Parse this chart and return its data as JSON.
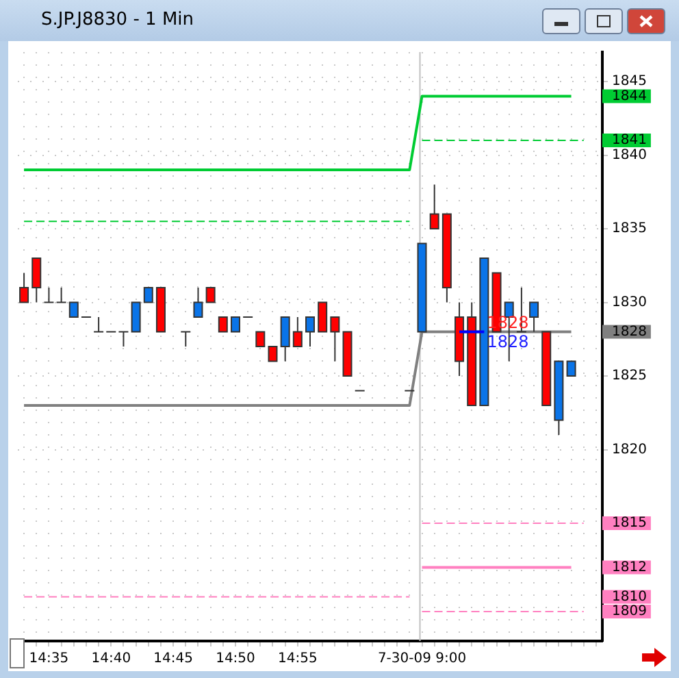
{
  "chart_data": {
    "type": "candlestick",
    "title": "S.JP.J8830 - 1 Min",
    "categories": [
      null,
      null,
      "14:35",
      null,
      null,
      null,
      null,
      "14:40",
      null,
      null,
      null,
      null,
      "14:45",
      null,
      null,
      null,
      null,
      "14:50",
      null,
      null,
      null,
      null,
      "14:55",
      null,
      null,
      null,
      null,
      null,
      null,
      null,
      null,
      null,
      "7-30-09 9:00",
      null,
      null,
      null,
      null,
      null,
      null,
      null,
      null,
      null,
      null,
      null,
      null,
      null,
      null
    ],
    "ohlc": [
      [
        1831,
        1832,
        1830,
        1830
      ],
      [
        1833,
        1833,
        1830,
        1831
      ],
      [
        1830,
        1831,
        1830,
        1830
      ],
      [
        1830,
        1831,
        1830,
        1830
      ],
      [
        1829,
        1830,
        1829,
        1830
      ],
      [
        1829,
        1829,
        1829,
        1829
      ],
      [
        1828,
        1829,
        1828,
        1828
      ],
      [
        1828,
        1828,
        1828,
        1828
      ],
      [
        1828,
        1828,
        1827,
        1828
      ],
      [
        1828,
        1830,
        1828,
        1830
      ],
      [
        1830,
        1831,
        1830,
        1831
      ],
      [
        1831,
        1831,
        1828,
        1828
      ],
      null,
      [
        1828,
        1828,
        1827,
        1828
      ],
      [
        1829,
        1831,
        1829,
        1830
      ],
      [
        1831,
        1831,
        1830,
        1830
      ],
      [
        1829,
        1829,
        1828,
        1828
      ],
      [
        1828,
        1829,
        1828,
        1829
      ],
      [
        1829,
        1829,
        1829,
        1829
      ],
      [
        1828,
        1828,
        1827,
        1827
      ],
      [
        1827,
        1827,
        1826,
        1826
      ],
      [
        1827,
        1829,
        1826,
        1829
      ],
      [
        1828,
        1829,
        1827,
        1827
      ],
      [
        1828,
        1829,
        1827,
        1829
      ],
      [
        1830,
        1830,
        1828,
        1828
      ],
      [
        1829,
        1829,
        1826,
        1828
      ],
      [
        1828,
        1828,
        1825,
        1825
      ],
      [
        1824,
        1824,
        1824,
        1824
      ],
      null,
      null,
      null,
      [
        1824,
        1824,
        1824,
        1824
      ],
      [
        1828,
        1834,
        1828,
        1834
      ],
      [
        1836,
        1838,
        1835,
        1835
      ],
      [
        1836,
        1836,
        1830,
        1831
      ],
      [
        1829,
        1830,
        1825,
        1826
      ],
      [
        1829,
        1830,
        1823,
        1823
      ],
      [
        1823,
        1833,
        1823,
        1833
      ],
      [
        1832,
        1832,
        1828,
        1828
      ],
      [
        1829,
        1830,
        1826,
        1830
      ],
      [
        1828,
        1831,
        1828,
        1828
      ],
      [
        1829,
        1830,
        1828,
        1830
      ],
      [
        1828,
        1828,
        1823,
        1823
      ],
      [
        1822,
        1826,
        1821,
        1826
      ],
      [
        1825,
        1826,
        1825,
        1826
      ],
      null,
      null
    ],
    "colors": [
      "#ff0000",
      "#ff0000",
      "#333333",
      "#333333",
      "#0a74e8",
      "#333333",
      "#333333",
      "#333333",
      "#333333",
      "#0a74e8",
      "#0a74e8",
      "#ff0000",
      null,
      "#333333",
      "#0a74e8",
      "#ff0000",
      "#ff0000",
      "#0a74e8",
      "#333333",
      "#ff0000",
      "#ff0000",
      "#0a74e8",
      "#ff0000",
      "#0a74e8",
      "#ff0000",
      "#ff0000",
      "#ff0000",
      "#333333",
      null,
      null,
      null,
      "#333333",
      "#0a74e8",
      "#ff0000",
      "#ff0000",
      "#ff0000",
      "#ff0000",
      "#0a74e8",
      "#ff0000",
      "#0a74e8",
      "#333333",
      "#0a74e8",
      "#ff0000",
      "#0a74e8",
      "#0a74e8",
      null,
      null
    ],
    "series": [
      {
        "type": "line",
        "color": "#808080",
        "line_style": "solid",
        "values": [
          1823,
          1823,
          1823,
          1823,
          1823,
          1823,
          1823,
          1823,
          1823,
          1823,
          1823,
          1823,
          1823,
          1823,
          1823,
          1823,
          1823,
          1823,
          1823,
          1823,
          1823,
          1823,
          1823,
          1823,
          1823,
          1823,
          1823,
          1823,
          1823,
          1823,
          1823,
          1823,
          1828,
          1828,
          1828,
          1828,
          1828,
          1828,
          1828,
          1828,
          1828,
          1828,
          1828,
          1828,
          1828,
          null,
          null
        ]
      },
      {
        "type": "line",
        "color": "#00cc33",
        "line_style": "solid",
        "values": [
          1839,
          1839,
          1839,
          1839,
          1839,
          1839,
          1839,
          1839,
          1839,
          1839,
          1839,
          1839,
          1839,
          1839,
          1839,
          1839,
          1839,
          1839,
          1839,
          1839,
          1839,
          1839,
          1839,
          1839,
          1839,
          1839,
          1839,
          1839,
          1839,
          1839,
          1839,
          1839,
          1844,
          1844,
          1844,
          1844,
          1844,
          1844,
          1844,
          1844,
          1844,
          1844,
          1844,
          1844,
          1844,
          null,
          null
        ]
      },
      {
        "type": "line",
        "color": "#00cc33",
        "line_style": "dashed",
        "values": [
          1835.5,
          1835.5,
          1835.5,
          1835.5,
          1835.5,
          1835.5,
          1835.5,
          1835.5,
          1835.5,
          1835.5,
          1835.5,
          1835.5,
          1835.5,
          1835.5,
          1835.5,
          1835.5,
          1835.5,
          1835.5,
          1835.5,
          1835.5,
          1835.5,
          1835.5,
          1835.5,
          1835.5,
          1835.5,
          1835.5,
          1835.5,
          1835.5,
          1835.5,
          1835.5,
          1835.5,
          1835.5,
          null,
          null,
          null,
          null,
          null,
          null,
          null,
          null,
          null,
          null,
          null,
          null,
          null,
          null,
          null
        ]
      },
      {
        "type": "line",
        "color": "#00cc33",
        "line_style": "dashed",
        "values": [
          null,
          null,
          null,
          null,
          null,
          null,
          null,
          null,
          null,
          null,
          null,
          null,
          null,
          null,
          null,
          null,
          null,
          null,
          null,
          null,
          null,
          null,
          null,
          null,
          null,
          null,
          null,
          null,
          null,
          null,
          null,
          null,
          1841,
          1841,
          1841,
          1841,
          1841,
          1841,
          1841,
          1841,
          1841,
          1841,
          1841,
          1841,
          1841,
          1841,
          null
        ]
      },
      {
        "type": "line",
        "color": "#ff80c0",
        "line_style": "dashed",
        "values": [
          1810,
          1810,
          1810,
          1810,
          1810,
          1810,
          1810,
          1810,
          1810,
          1810,
          1810,
          1810,
          1810,
          1810,
          1810,
          1810,
          1810,
          1810,
          1810,
          1810,
          1810,
          1810,
          1810,
          1810,
          1810,
          1810,
          1810,
          1810,
          1810,
          1810,
          1810,
          1810,
          null,
          null,
          null,
          null,
          null,
          null,
          null,
          null,
          null,
          null,
          null,
          null,
          null,
          null,
          null
        ]
      },
      {
        "type": "line",
        "color": "#ff80c0",
        "line_style": "dashed",
        "values": [
          null,
          null,
          null,
          null,
          null,
          null,
          null,
          null,
          null,
          null,
          null,
          null,
          null,
          null,
          null,
          null,
          null,
          null,
          null,
          null,
          null,
          null,
          null,
          null,
          null,
          null,
          null,
          null,
          null,
          null,
          null,
          null,
          1815,
          1815,
          1815,
          1815,
          1815,
          1815,
          1815,
          1815,
          1815,
          1815,
          1815,
          1815,
          1815,
          1815,
          null
        ]
      },
      {
        "type": "line",
        "color": "#ff80c0",
        "line_style": "solid",
        "values": [
          null,
          null,
          null,
          null,
          null,
          null,
          null,
          null,
          null,
          null,
          null,
          null,
          null,
          null,
          null,
          null,
          null,
          null,
          null,
          null,
          null,
          null,
          null,
          null,
          null,
          null,
          null,
          null,
          null,
          null,
          null,
          null,
          1812,
          1812,
          1812,
          1812,
          1812,
          1812,
          1812,
          1812,
          1812,
          1812,
          1812,
          1812,
          1812,
          null,
          null
        ]
      },
      {
        "type": "line",
        "color": "#ff80c0",
        "line_style": "dashed",
        "values": [
          null,
          null,
          null,
          null,
          null,
          null,
          null,
          null,
          null,
          null,
          null,
          null,
          null,
          null,
          null,
          null,
          null,
          null,
          null,
          null,
          null,
          null,
          null,
          null,
          null,
          null,
          null,
          null,
          null,
          null,
          null,
          null,
          1809,
          1809,
          1809,
          1809,
          1809,
          1809,
          1809,
          1809,
          1809,
          1809,
          1809,
          1809,
          1809,
          1809,
          null
        ]
      },
      {
        "type": "line",
        "color": "#0000ff",
        "line_style": "solid",
        "values": [
          null,
          null,
          null,
          null,
          null,
          null,
          null,
          null,
          null,
          null,
          null,
          null,
          null,
          null,
          null,
          null,
          null,
          null,
          null,
          null,
          null,
          null,
          null,
          null,
          null,
          null,
          null,
          null,
          null,
          null,
          null,
          null,
          null,
          null,
          null,
          1828,
          1828,
          1828,
          null,
          null,
          null,
          null,
          null,
          null,
          null,
          null,
          null
        ]
      }
    ],
    "annotations": [
      "1828",
      "1828"
    ],
    "ref_lines": [
      {
        "axis": "x",
        "value": "7-30-09 9:00",
        "color": "#c0c0c0"
      }
    ],
    "ylim": [
      1807,
      1847
    ],
    "yticks": [
      1809,
      1810,
      1812,
      1815,
      1820,
      1825,
      1828,
      1830,
      1835,
      1840,
      1841,
      1844,
      1845
    ],
    "grid": true,
    "legend": false,
    "marker": "none"
  }
}
